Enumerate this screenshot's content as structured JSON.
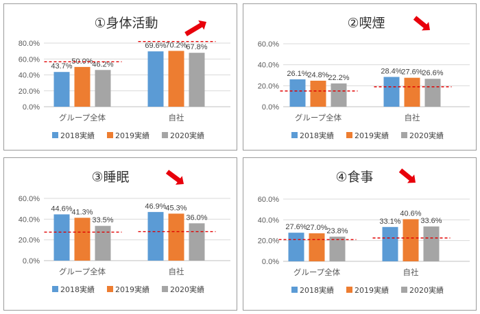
{
  "colors": {
    "series": [
      "#5B9BD5",
      "#ED7D31",
      "#A5A5A5"
    ],
    "target_line": "#E00000",
    "arrow": "#E8000B",
    "grid": "#D9D9D9"
  },
  "chart_data": [
    {
      "type": "bar",
      "title": "①身体活動",
      "trend_arrow": "up",
      "categories": [
        "グループ全体",
        "自社"
      ],
      "series": [
        {
          "name": "2018実績",
          "values": [
            43.7,
            69.6
          ]
        },
        {
          "name": "2019実績",
          "values": [
            50.0,
            70.2
          ]
        },
        {
          "name": "2020実績",
          "values": [
            46.2,
            67.8
          ]
        }
      ],
      "value_labels": [
        [
          "43.7%",
          "69.6%"
        ],
        [
          "50.0%",
          "70.2%"
        ],
        [
          "46.2%",
          "67.8%"
        ]
      ],
      "ylim": [
        0,
        80
      ],
      "yticks": [
        "0.0%",
        "20.0%",
        "40.0%",
        "60.0%",
        "80.0%"
      ],
      "target_values": [
        56.5,
        82
      ],
      "legend": "bottom"
    },
    {
      "type": "bar",
      "title": "②喫煙",
      "trend_arrow": "down",
      "categories": [
        "グループ全体",
        "自社"
      ],
      "series": [
        {
          "name": "2018実績",
          "values": [
            26.1,
            28.4
          ]
        },
        {
          "name": "2019実績",
          "values": [
            24.8,
            27.6
          ]
        },
        {
          "name": "2020実績",
          "values": [
            22.2,
            26.6
          ]
        }
      ],
      "value_labels": [
        [
          "26.1%",
          "28.4%"
        ],
        [
          "24.8%",
          "27.6%"
        ],
        [
          "22.2%",
          "26.6%"
        ]
      ],
      "ylim": [
        0,
        60
      ],
      "yticks": [
        "0.0%",
        "20.0%",
        "40.0%",
        "60.0%"
      ],
      "target_values": [
        15,
        19
      ],
      "legend": "bottom"
    },
    {
      "type": "bar",
      "title": "③睡眠",
      "trend_arrow": "down",
      "categories": [
        "グループ全体",
        "自社"
      ],
      "series": [
        {
          "name": "2018実績",
          "values": [
            44.6,
            46.9
          ]
        },
        {
          "name": "2019実績",
          "values": [
            41.3,
            45.3
          ]
        },
        {
          "name": "2020実績",
          "values": [
            33.5,
            36.0
          ]
        }
      ],
      "value_labels": [
        [
          "44.6%",
          "46.9%"
        ],
        [
          "41.3%",
          "45.3%"
        ],
        [
          "33.5%",
          "36.0%"
        ]
      ],
      "ylim": [
        0,
        60
      ],
      "yticks": [
        "0.0%",
        "20.0%",
        "40.0%",
        "60.0%"
      ],
      "target_values": [
        27.5,
        28
      ],
      "legend": "bottom"
    },
    {
      "type": "bar",
      "title": "④食事",
      "trend_arrow": "down",
      "categories": [
        "グループ全体",
        "自社"
      ],
      "series": [
        {
          "name": "2018実績",
          "values": [
            27.6,
            33.1
          ]
        },
        {
          "name": "2019実績",
          "values": [
            27.0,
            40.6
          ]
        },
        {
          "name": "2020実績",
          "values": [
            23.8,
            33.6
          ]
        }
      ],
      "value_labels": [
        [
          "27.6%",
          "33.1%"
        ],
        [
          "27.0%",
          "40.6%"
        ],
        [
          "23.8%",
          "33.6%"
        ]
      ],
      "ylim": [
        0,
        60
      ],
      "yticks": [
        "0.0%",
        "20.0%",
        "40.0%",
        "60.0%"
      ],
      "target_values": [
        21,
        22.5
      ],
      "legend": "bottom"
    }
  ]
}
